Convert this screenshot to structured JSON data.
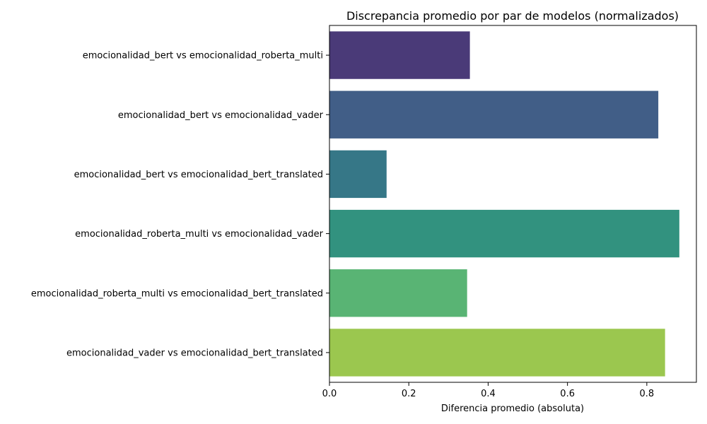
{
  "chart_data": {
    "type": "bar",
    "orientation": "horizontal",
    "title": "Discrepancia promedio por par de modelos (normalizados)",
    "xlabel": "Diferencia promedio (absoluta)",
    "ylabel": "",
    "xlim": [
      0,
      0.925
    ],
    "xticks": [
      0.0,
      0.2,
      0.4,
      0.6,
      0.8
    ],
    "xtick_labels": [
      "0.0",
      "0.2",
      "0.4",
      "0.6",
      "0.8"
    ],
    "grid": false,
    "categories": [
      "emocionalidad_bert vs emocionalidad_roberta_multi",
      "emocionalidad_bert vs emocionalidad_vader",
      "emocionalidad_bert vs emocionalidad_bert_translated",
      "emocionalidad_roberta_multi vs emocionalidad_vader",
      "emocionalidad_roberta_multi vs emocionalidad_bert_translated",
      "emocionalidad_vader vs emocionalidad_bert_translated"
    ],
    "values": [
      0.354,
      0.829,
      0.144,
      0.882,
      0.347,
      0.846
    ],
    "colors": [
      "#4a3a78",
      "#415e87",
      "#367787",
      "#32927f",
      "#59b474",
      "#9bc74f"
    ]
  }
}
